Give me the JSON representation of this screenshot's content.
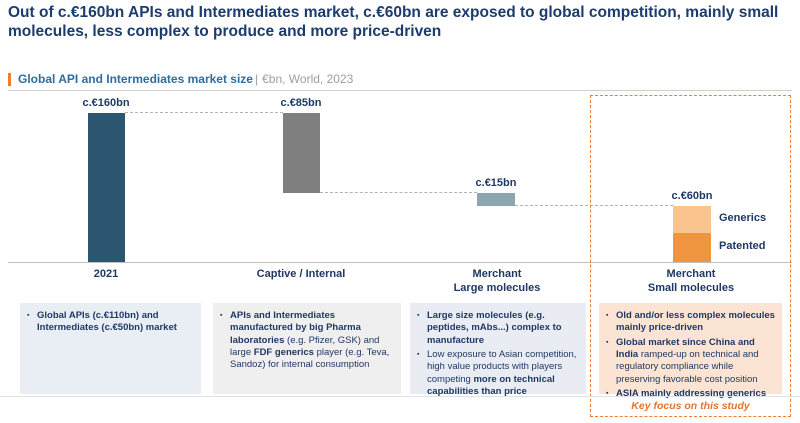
{
  "title": "Out of c.€160bn APIs and Intermediates market, c.€60bn are exposed to global competition, mainly small molecules, less complex to produce and more price-driven",
  "chart_header": {
    "title": "Global API and Intermediates market size",
    "separator": "|",
    "subtitle": "€bn, World, 2023"
  },
  "chart_data": {
    "type": "bar",
    "subtype": "waterfall",
    "unit": "€bn",
    "title": "Global API and Intermediates market size",
    "subtitle": "€bn, World, 2023",
    "categories": [
      "2021",
      "Captive / Internal",
      "Merchant Large molecules",
      "Merchant Small molecules"
    ],
    "axis_labels": [
      "2021",
      "Captive / Internal",
      "Merchant\nLarge molecules",
      "Merchant\nSmall molecules"
    ],
    "ylim": [
      0,
      160
    ],
    "grid": false,
    "bars": [
      {
        "label": "2021",
        "value": 160,
        "display": "c.€160bn",
        "from": 0,
        "to": 160,
        "color": "#2C566F"
      },
      {
        "label": "Captive / Internal",
        "value": 85,
        "display": "c.€85bn",
        "from": 75,
        "to": 160,
        "color": "#7F7F7F"
      },
      {
        "label": "Merchant Large molecules",
        "value": 15,
        "display": "c.€15bn",
        "from": 60,
        "to": 75,
        "color": "#8BA6AC"
      },
      {
        "label": "Merchant Small molecules",
        "value": 60,
        "display": "c.€60bn",
        "from": 0,
        "to": 60,
        "segments": [
          {
            "name": "Generics",
            "value": 30,
            "color": "#F9C48E"
          },
          {
            "name": "Patented",
            "value": 30,
            "color": "#F0953F"
          }
        ]
      }
    ]
  },
  "boxes": [
    {
      "bullets": [
        {
          "segments": [
            {
              "text": "Global APIs (c.€110bn) and Intermediates (c.€50bn) market",
              "bold": true
            }
          ]
        }
      ]
    },
    {
      "bullets": [
        {
          "segments": [
            {
              "text": "APIs and Intermediates manufactured by big Pharma laboratories ",
              "bold": true
            },
            {
              "text": "(e.g. Pfizer, GSK) and large ",
              "bold": false
            },
            {
              "text": "FDF generics ",
              "bold": true
            },
            {
              "text": "player (e.g. Teva, Sandoz) for internal consumption",
              "bold": false
            }
          ]
        }
      ]
    },
    {
      "bullets": [
        {
          "segments": [
            {
              "text": "Large size molecules (e.g. peptides, mAbs...) complex to manufacture",
              "bold": true
            }
          ]
        },
        {
          "segments": [
            {
              "text": "Low exposure to Asian competition, high value products with players competing ",
              "bold": false
            },
            {
              "text": "more on technical capabilities than price",
              "bold": true
            }
          ]
        }
      ]
    },
    {
      "bullets": [
        {
          "segments": [
            {
              "text": "Old and/or less complex molecules mainly price-driven",
              "bold": true
            }
          ]
        },
        {
          "segments": [
            {
              "text": "Global market since China and India ",
              "bold": true
            },
            {
              "text": "ramped-up on technical and regulatory compliance while preserving favorable cost position",
              "bold": false
            }
          ]
        },
        {
          "segments": [
            {
              "text": "ASIA mainly addressing generics",
              "bold": true
            }
          ]
        }
      ]
    }
  ],
  "bullet_marker": "▪",
  "key_focus": "Key focus on this study",
  "colors": {
    "title_text": "#1C3C6E",
    "header_accent": "#ED7D31",
    "header_title": "#2E6DA0",
    "header_subtitle": "#9E9E9E",
    "bar_2021": "#2C566F",
    "bar_captive": "#7F7F7F",
    "bar_merchant_large": "#8BA6AC",
    "generics_segment": "#F9C48E",
    "patented_segment": "#F0953F",
    "focus_border": "#ED7D31",
    "box1_bg": "#E8EEF4",
    "box2_bg": "#F0EFEF",
    "box3_bg": "#E9EDF3",
    "box4_bg": "#FBE4D3",
    "body_text": "#1F3864",
    "key_focus_text": "#E8732A"
  }
}
